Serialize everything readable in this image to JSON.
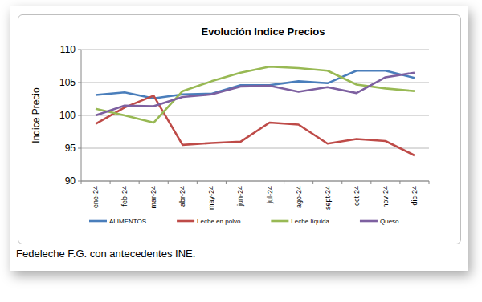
{
  "chart_data": {
    "type": "line",
    "title": "Evolución  Indice Precios",
    "y_label": "Indice Precio",
    "caption": "Fedeleche F.G. con antecedentes INE.",
    "categories": [
      "ene-24",
      "feb-24",
      "mar-24",
      "abr-24",
      "may-24",
      "jun-24",
      "jul-24",
      "ago-24",
      "sept-24",
      "oct-24",
      "nov-24",
      "dic-24"
    ],
    "series": [
      {
        "name": "ALIMENTOS",
        "color": "#4a7ebb",
        "values": [
          103.1,
          103.5,
          102.6,
          103.2,
          103.3,
          104.6,
          104.6,
          105.2,
          104.9,
          106.8,
          106.8,
          105.7
        ]
      },
      {
        "name": "Leche en polvo",
        "color": "#be4b48",
        "values": [
          98.7,
          101.2,
          103.0,
          95.5,
          95.8,
          96.0,
          98.9,
          98.6,
          95.7,
          96.4,
          96.1,
          93.9
        ]
      },
      {
        "name": "Leche líquida",
        "color": "#98b954",
        "values": [
          101.0,
          100.0,
          98.9,
          103.7,
          105.2,
          106.5,
          107.4,
          107.2,
          106.8,
          104.7,
          104.1,
          103.7
        ]
      },
      {
        "name": "Queso",
        "color": "#7d60a0",
        "values": [
          100.0,
          101.5,
          101.4,
          102.8,
          103.2,
          104.4,
          104.5,
          103.6,
          104.3,
          103.4,
          105.8,
          106.5
        ]
      }
    ],
    "ylim": [
      90,
      110
    ],
    "yticks": [
      90,
      95,
      100,
      105,
      110
    ],
    "grid": true,
    "legend": "bottom"
  }
}
